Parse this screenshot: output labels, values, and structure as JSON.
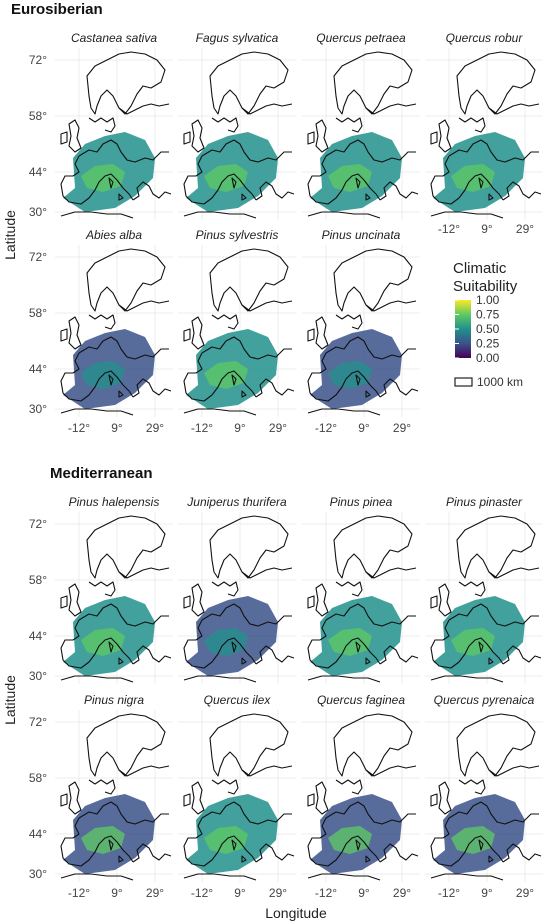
{
  "groups": {
    "eurosiberian": "Eurosiberian",
    "mediterranean": "Mediterranean"
  },
  "axes": {
    "xlabel": "Longitude",
    "ylabel": "Latitude",
    "x_ticks": [
      "-12°",
      "9°",
      "29°"
    ],
    "y_ticks": [
      "72°",
      "58°",
      "44°",
      "30°"
    ]
  },
  "legend": {
    "title_line1": "Climatic",
    "title_line2": "Suitability",
    "labels": [
      "1.00",
      "0.75",
      "0.50",
      "0.25",
      "0.00"
    ],
    "scale_label": "1000 km",
    "colors": [
      "#fde725",
      "#5ec962",
      "#21918c",
      "#3b528b",
      "#440154"
    ]
  },
  "chart_data": [
    {
      "type": "heatmap",
      "title": "Eurosiberian",
      "xlabel": "Longitude",
      "ylabel": "Latitude",
      "xlim": [
        -12,
        29
      ],
      "ylim": [
        30,
        72
      ],
      "x_ticks": [
        -12,
        9,
        29
      ],
      "y_ticks": [
        30,
        44,
        58,
        72
      ],
      "value_range": [
        0,
        1
      ],
      "colorbar_title": "Climatic Suitability",
      "panels": [
        {
          "species": "Castanea sativa",
          "mean_suitability": 0.45
        },
        {
          "species": "Fagus sylvatica",
          "mean_suitability": 0.4
        },
        {
          "species": "Quercus petraea",
          "mean_suitability": 0.45
        },
        {
          "species": "Quercus robur",
          "mean_suitability": 0.5
        },
        {
          "species": "Abies alba",
          "mean_suitability": 0.3
        },
        {
          "species": "Pinus sylvestris",
          "mean_suitability": 0.55
        },
        {
          "species": "Pinus uncinata",
          "mean_suitability": 0.25
        }
      ]
    },
    {
      "type": "heatmap",
      "title": "Mediterranean",
      "xlabel": "Longitude",
      "ylabel": "Latitude",
      "xlim": [
        -12,
        29
      ],
      "ylim": [
        30,
        72
      ],
      "x_ticks": [
        -12,
        9,
        29
      ],
      "y_ticks": [
        30,
        44,
        58,
        72
      ],
      "value_range": [
        0,
        1
      ],
      "panels": [
        {
          "species": "Pinus halepensis",
          "mean_suitability": 0.4
        },
        {
          "species": "Juniperus thurifera",
          "mean_suitability": 0.3
        },
        {
          "species": "Pinus pinea",
          "mean_suitability": 0.4
        },
        {
          "species": "Pinus pinaster",
          "mean_suitability": 0.4
        },
        {
          "species": "Pinus nigra",
          "mean_suitability": 0.35
        },
        {
          "species": "Quercus ilex",
          "mean_suitability": 0.45
        },
        {
          "species": "Quercus faginea",
          "mean_suitability": 0.35
        },
        {
          "species": "Quercus pyrenaica",
          "mean_suitability": 0.35
        }
      ]
    }
  ]
}
